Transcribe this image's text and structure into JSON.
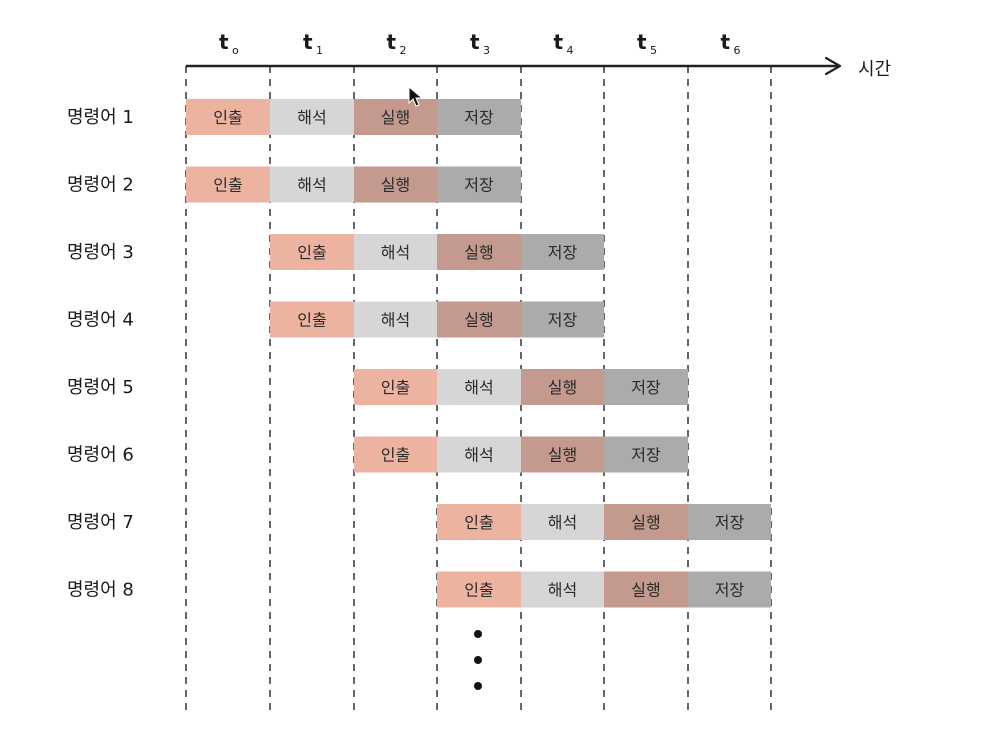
{
  "axis": {
    "title": "시간",
    "ticks": [
      {
        "main": "t",
        "sub": "o"
      },
      {
        "main": "t",
        "sub": "1"
      },
      {
        "main": "t",
        "sub": "2"
      },
      {
        "main": "t",
        "sub": "3"
      },
      {
        "main": "t",
        "sub": "4"
      },
      {
        "main": "t",
        "sub": "5"
      },
      {
        "main": "t",
        "sub": "6"
      }
    ]
  },
  "stages": [
    {
      "key": "fetch",
      "label": "인출",
      "color": "#ecb3a0"
    },
    {
      "key": "decode",
      "label": "해석",
      "color": "#d6d6d6"
    },
    {
      "key": "execute",
      "label": "실행",
      "color": "#c49a8e"
    },
    {
      "key": "writeback",
      "label": "저장",
      "color": "#ababab"
    }
  ],
  "instructions": [
    {
      "label": "명령어 1",
      "start_slot": 0
    },
    {
      "label": "명령어 2",
      "start_slot": 0
    },
    {
      "label": "명령어 3",
      "start_slot": 1
    },
    {
      "label": "명령어 4",
      "start_slot": 1
    },
    {
      "label": "명령어 5",
      "start_slot": 2
    },
    {
      "label": "명령어 6",
      "start_slot": 2
    },
    {
      "label": "명령어 7",
      "start_slot": 3
    },
    {
      "label": "명령어 8",
      "start_slot": 3
    }
  ],
  "continuation": "⋮"
}
